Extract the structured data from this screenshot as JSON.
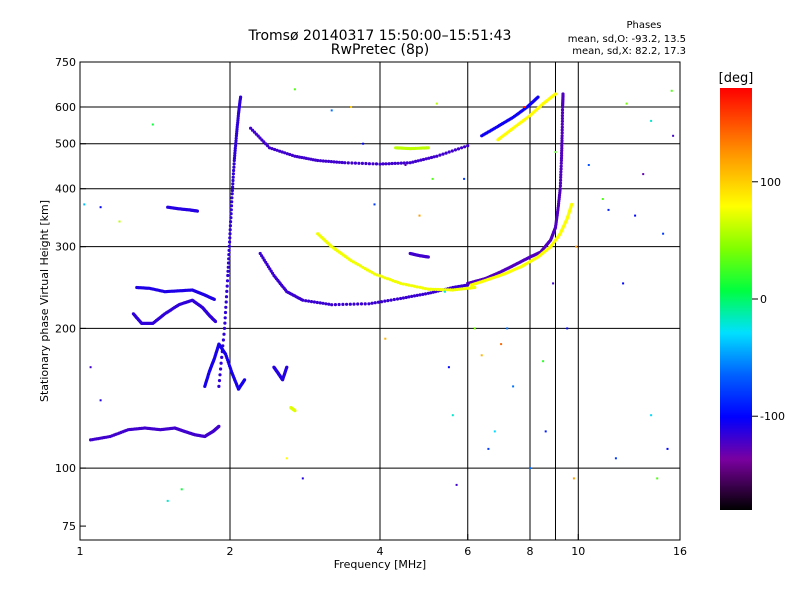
{
  "chart_data": {
    "type": "scatter",
    "title": "Tromsø 20140317 15:50:00–15:51:43",
    "subtitle": "RwPretec (8p)",
    "xlabel": "Frequency [MHz]",
    "ylabel": "Stationary phase Virtual Height [km]",
    "x_scale": "log",
    "y_scale": "log",
    "xlim": [
      1,
      16
    ],
    "ylim": [
      70,
      750
    ],
    "x_ticks": [
      {
        "value": 1,
        "label": "1"
      },
      {
        "value": 2,
        "label": "2"
      },
      {
        "value": 4,
        "label": "4"
      },
      {
        "value": 6,
        "label": "6"
      },
      {
        "value": 8,
        "label": "8"
      },
      {
        "value": 10,
        "label": "10"
      },
      {
        "value": 16,
        "label": "16"
      }
    ],
    "y_ticks": [
      {
        "value": 75,
        "label": "75"
      },
      {
        "value": 100,
        "label": "100"
      },
      {
        "value": 200,
        "label": "200"
      },
      {
        "value": 300,
        "label": "300"
      },
      {
        "value": 400,
        "label": "400"
      },
      {
        "value": 500,
        "label": "500"
      },
      {
        "value": 600,
        "label": "600"
      },
      {
        "value": 750,
        "label": "750"
      }
    ],
    "x_grid": [
      2,
      4,
      6,
      8,
      9,
      10
    ],
    "y_grid": [
      100,
      200,
      300,
      400,
      500,
      600
    ],
    "grid": true,
    "phases_box": {
      "title": "Phases",
      "line_o": "mean, sd,O: -93.2, 13.5",
      "line_x": "mean, sd,X:  82.2, 17.3"
    },
    "colorbar": {
      "label": "[deg]",
      "min": -180,
      "max": 180,
      "ticks": [
        {
          "value": 100,
          "label": "100"
        },
        {
          "value": 0,
          "label": "0"
        },
        {
          "value": -100,
          "label": "-100"
        }
      ]
    },
    "traces": [
      {
        "name": "",
        "phase": -120,
        "points": [
          [
            1.05,
            115
          ],
          [
            1.15,
            117
          ],
          [
            1.25,
            121
          ],
          [
            1.35,
            122
          ],
          [
            1.45,
            121
          ],
          [
            1.55,
            122
          ],
          [
            1.62,
            120
          ],
          [
            1.7,
            118
          ],
          [
            1.78,
            117
          ],
          [
            1.85,
            120
          ],
          [
            1.9,
            123
          ]
        ]
      },
      {
        "name": "",
        "phase": -115,
        "points": [
          [
            1.28,
            215
          ],
          [
            1.33,
            205
          ],
          [
            1.4,
            205
          ],
          [
            1.48,
            215
          ],
          [
            1.58,
            225
          ],
          [
            1.68,
            230
          ],
          [
            1.76,
            222
          ],
          [
            1.82,
            213
          ],
          [
            1.87,
            207
          ]
        ]
      },
      {
        "name": "",
        "phase": -110,
        "points": [
          [
            1.3,
            245
          ],
          [
            1.38,
            244
          ],
          [
            1.48,
            240
          ],
          [
            1.58,
            241
          ],
          [
            1.68,
            242
          ],
          [
            1.78,
            236
          ],
          [
            1.86,
            231
          ]
        ]
      },
      {
        "name": "",
        "phase": -112,
        "points": [
          [
            1.5,
            365
          ],
          [
            1.58,
            362
          ],
          [
            1.66,
            360
          ],
          [
            1.72,
            358
          ]
        ]
      },
      {
        "name": "",
        "phase": -115,
        "points": [
          [
            1.9,
            150
          ],
          [
            1.95,
            200
          ],
          [
            1.98,
            260
          ],
          [
            2.0,
            320
          ],
          [
            2.02,
            390
          ],
          [
            2.04,
            460
          ],
          [
            2.06,
            520
          ],
          [
            2.08,
            580
          ],
          [
            2.1,
            630
          ]
        ]
      },
      {
        "name": "",
        "phase": -108,
        "points": [
          [
            1.78,
            150
          ],
          [
            1.82,
            162
          ],
          [
            1.86,
            172
          ],
          [
            1.9,
            185
          ],
          [
            1.96,
            176
          ],
          [
            2.02,
            160
          ],
          [
            2.08,
            148
          ],
          [
            2.14,
            155
          ]
        ]
      },
      {
        "name": "",
        "phase": -120,
        "points": [
          [
            2.2,
            540
          ],
          [
            2.4,
            490
          ],
          [
            2.7,
            470
          ],
          [
            3.0,
            460
          ],
          [
            3.4,
            455
          ],
          [
            4.0,
            452
          ],
          [
            4.6,
            455
          ],
          [
            5.2,
            470
          ],
          [
            6.0,
            495
          ]
        ]
      },
      {
        "name": "",
        "phase": -118,
        "points": [
          [
            2.3,
            290
          ],
          [
            2.45,
            260
          ],
          [
            2.6,
            240
          ],
          [
            2.8,
            230
          ],
          [
            3.2,
            225
          ],
          [
            3.8,
            226
          ],
          [
            4.4,
            232
          ],
          [
            5.0,
            238
          ],
          [
            5.6,
            245
          ],
          [
            6.0,
            248
          ]
        ]
      },
      {
        "name": "",
        "phase": 75,
        "points": [
          [
            3.0,
            320
          ],
          [
            3.2,
            300
          ],
          [
            3.5,
            280
          ],
          [
            3.9,
            262
          ],
          [
            4.4,
            250
          ],
          [
            5.0,
            243
          ],
          [
            5.6,
            242
          ],
          [
            6.2,
            245
          ]
        ]
      },
      {
        "name": "",
        "phase": -125,
        "points": [
          [
            6.0,
            250
          ],
          [
            6.5,
            256
          ],
          [
            7.0,
            265
          ],
          [
            7.5,
            275
          ],
          [
            8.0,
            285
          ],
          [
            8.4,
            292
          ],
          [
            8.8,
            310
          ],
          [
            9.0,
            330
          ],
          [
            9.1,
            360
          ],
          [
            9.2,
            400
          ],
          [
            9.25,
            460
          ],
          [
            9.28,
            520
          ],
          [
            9.3,
            600
          ],
          [
            9.32,
            640
          ]
        ]
      },
      {
        "name": "",
        "phase": 78,
        "points": [
          [
            6.1,
            248
          ],
          [
            6.6,
            255
          ],
          [
            7.1,
            262
          ],
          [
            7.7,
            272
          ],
          [
            8.3,
            285
          ],
          [
            8.8,
            300
          ],
          [
            9.2,
            320
          ],
          [
            9.5,
            345
          ],
          [
            9.7,
            370
          ]
        ]
      },
      {
        "name": "",
        "phase": -105,
        "points": [
          [
            6.4,
            520
          ],
          [
            6.9,
            545
          ],
          [
            7.4,
            570
          ],
          [
            7.9,
            600
          ],
          [
            8.3,
            630
          ]
        ]
      },
      {
        "name": "",
        "phase": 80,
        "points": [
          [
            6.9,
            510
          ],
          [
            7.4,
            540
          ],
          [
            8.0,
            575
          ],
          [
            8.5,
            610
          ],
          [
            9.0,
            640
          ]
        ]
      },
      {
        "name": "",
        "phase": 60,
        "points": [
          [
            4.3,
            490
          ],
          [
            4.6,
            488
          ],
          [
            5.0,
            490
          ]
        ]
      },
      {
        "name": "",
        "phase": -112,
        "points": [
          [
            2.45,
            165
          ],
          [
            2.5,
            160
          ],
          [
            2.55,
            155
          ],
          [
            2.6,
            165
          ]
        ]
      },
      {
        "name": "",
        "phase": 70,
        "points": [
          [
            2.65,
            135
          ],
          [
            2.7,
            133
          ]
        ]
      },
      {
        "name": "",
        "phase": -120,
        "points": [
          [
            4.6,
            290
          ],
          [
            4.8,
            287
          ],
          [
            5.0,
            285
          ]
        ]
      }
    ],
    "scatter": [
      [
        1.02,
        370,
        -40
      ],
      [
        1.05,
        165,
        -120
      ],
      [
        1.1,
        365,
        -100
      ],
      [
        1.1,
        140,
        -110
      ],
      [
        1.2,
        340,
        60
      ],
      [
        1.4,
        550,
        10
      ],
      [
        1.5,
        85,
        -20
      ],
      [
        1.6,
        90,
        10
      ],
      [
        2.7,
        655,
        30
      ],
      [
        2.6,
        105,
        80
      ],
      [
        2.8,
        95,
        -110
      ],
      [
        3.2,
        590,
        -60
      ],
      [
        3.5,
        600,
        100
      ],
      [
        3.9,
        370,
        -80
      ],
      [
        4.1,
        190,
        110
      ],
      [
        4.5,
        450,
        -130
      ],
      [
        4.8,
        350,
        120
      ],
      [
        5.2,
        610,
        60
      ],
      [
        5.4,
        240,
        -20
      ],
      [
        5.5,
        165,
        -100
      ],
      [
        5.6,
        130,
        -20
      ],
      [
        5.7,
        92,
        -120
      ],
      [
        5.9,
        420,
        -80
      ],
      [
        6.2,
        200,
        40
      ],
      [
        6.4,
        175,
        110
      ],
      [
        6.8,
        120,
        -30
      ],
      [
        7.0,
        185,
        140
      ],
      [
        7.4,
        150,
        -60
      ],
      [
        7.8,
        600,
        170
      ],
      [
        8.0,
        100,
        -60
      ],
      [
        8.5,
        170,
        20
      ],
      [
        8.6,
        120,
        -90
      ],
      [
        9.0,
        480,
        30
      ],
      [
        9.5,
        200,
        -100
      ],
      [
        9.8,
        95,
        120
      ],
      [
        10.5,
        450,
        -70
      ],
      [
        11.2,
        380,
        30
      ],
      [
        11.9,
        105,
        -80
      ],
      [
        12.5,
        610,
        40
      ],
      [
        13.0,
        350,
        -100
      ],
      [
        13.5,
        430,
        -130
      ],
      [
        14.0,
        560,
        -20
      ],
      [
        14.4,
        95,
        30
      ],
      [
        14.8,
        320,
        -80
      ],
      [
        15.1,
        110,
        -100
      ],
      [
        15.4,
        650,
        30
      ],
      [
        15.5,
        520,
        -120
      ],
      [
        14.0,
        130,
        -30
      ],
      [
        12.3,
        250,
        -100
      ],
      [
        11.5,
        360,
        -90
      ],
      [
        9.9,
        300,
        120
      ],
      [
        8.9,
        250,
        -120
      ],
      [
        7.2,
        200,
        -60
      ],
      [
        6.6,
        110,
        -80
      ],
      [
        5.1,
        420,
        30
      ],
      [
        3.7,
        500,
        -100
      ]
    ]
  }
}
